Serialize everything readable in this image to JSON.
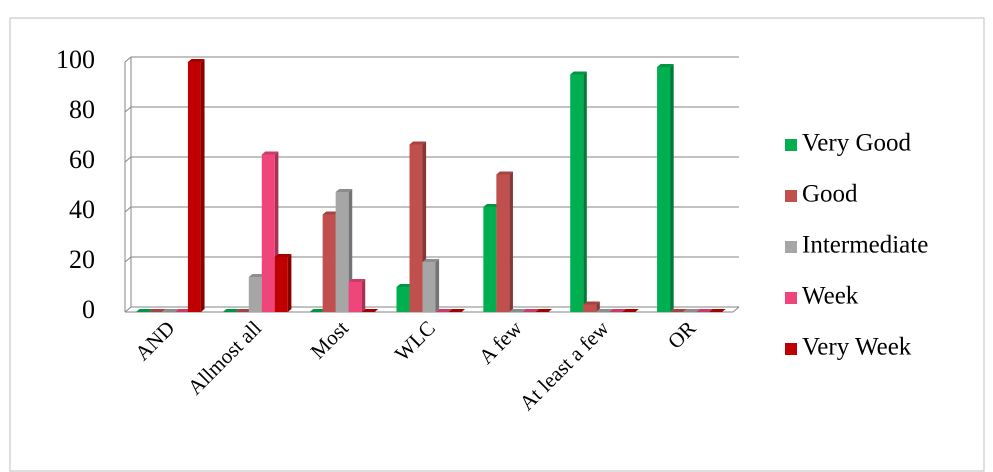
{
  "chart_data": {
    "type": "bar",
    "categories": [
      "AND",
      "Allmost all",
      "Most",
      "WLC",
      "A few",
      "At least a few",
      "OR"
    ],
    "series": [
      {
        "name": "Very Good",
        "color": "#00b050",
        "values": [
          0,
          0,
          0,
          10,
          42,
          95,
          98
        ]
      },
      {
        "name": "Good",
        "color": "#c0504d",
        "values": [
          0,
          0,
          39,
          67,
          55,
          3,
          0
        ]
      },
      {
        "name": "Intermediate",
        "color": "#a6a6a6",
        "values": [
          0,
          14,
          48,
          20,
          0,
          0,
          0
        ]
      },
      {
        "name": "Week",
        "color": "#f0457a",
        "values": [
          0,
          63,
          12,
          0,
          0,
          0,
          0
        ]
      },
      {
        "name": "Very Week",
        "color": "#c00000",
        "values": [
          100,
          22,
          0,
          0,
          0,
          0,
          0
        ]
      }
    ],
    "ylim": [
      0,
      100
    ],
    "yticks": [
      0,
      20,
      40,
      60,
      80,
      100
    ],
    "grid": true,
    "legend": "right"
  }
}
